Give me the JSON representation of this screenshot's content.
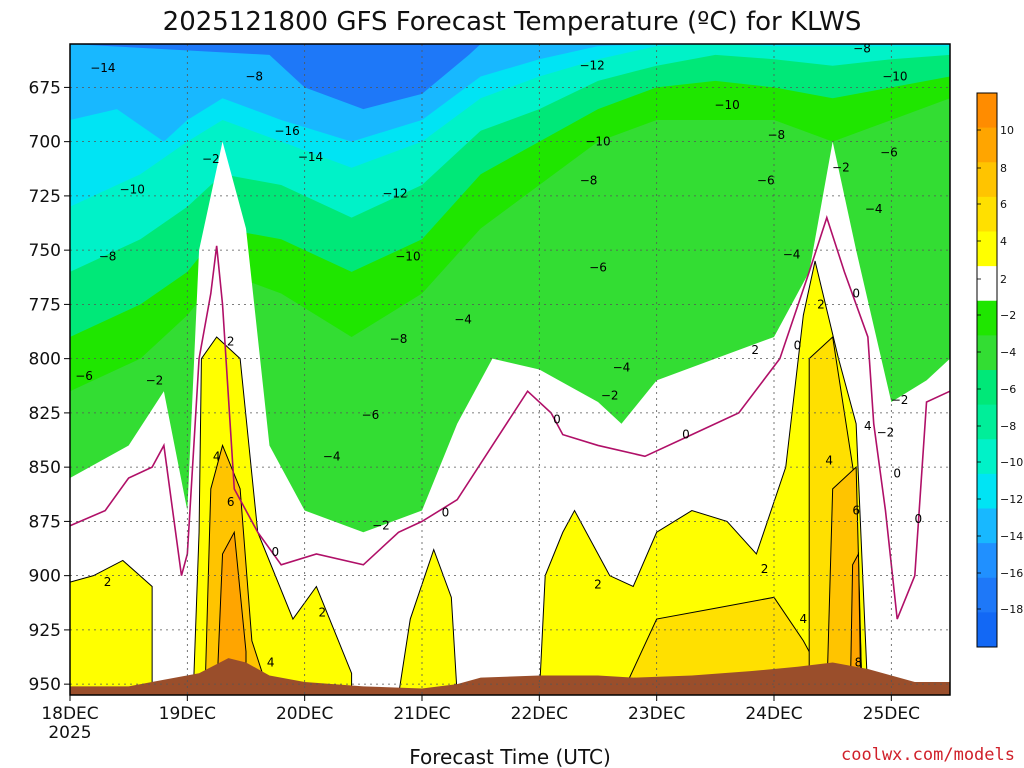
{
  "chart_data": {
    "type": "contour",
    "title": "2025121800 GFS Forecast Temperature (ºC) for KLWS",
    "xlabel": "Forecast Time (UTC)",
    "ylabel": "",
    "x_ticks": [
      "18DEC",
      "19DEC",
      "20DEC",
      "21DEC",
      "22DEC",
      "23DEC",
      "24DEC",
      "25DEC"
    ],
    "x_year": "2025",
    "xlim": [
      0,
      7.5
    ],
    "y_ticks": [
      675,
      700,
      725,
      750,
      775,
      800,
      825,
      850,
      875,
      900,
      925,
      950
    ],
    "ylim": [
      655,
      955
    ],
    "colorbar": {
      "levels": [
        10,
        8,
        6,
        4,
        2,
        -2,
        -4,
        -6,
        -8,
        -10,
        -12,
        -14,
        -16,
        -18
      ],
      "labels": [
        "10",
        "8",
        "6",
        "4",
        "2",
        "−2",
        "−4",
        "−6",
        "−8",
        "−10",
        "−12",
        "−14",
        "−16",
        "−18"
      ],
      "colors": [
        "#ff8c00",
        "#ffa500",
        "#ffc400",
        "#ffe000",
        "#ffff00",
        "#ffffff",
        "#1fe600",
        "#33dd33",
        "#00e878",
        "#00ee99",
        "#00f2c8",
        "#00e4f4",
        "#18b8ff",
        "#2090ff",
        "#1e78f8",
        "#1268f5"
      ]
    },
    "contour_labels": [
      {
        "text": "−14",
        "x": 0.28,
        "p": 666
      },
      {
        "text": "−8",
        "x": 1.57,
        "p": 670
      },
      {
        "text": "−16",
        "x": 1.85,
        "p": 695
      },
      {
        "text": "−14",
        "x": 2.05,
        "p": 707
      },
      {
        "text": "−2",
        "x": 1.2,
        "p": 708
      },
      {
        "text": "−10",
        "x": 0.53,
        "p": 722
      },
      {
        "text": "−12",
        "x": 2.77,
        "p": 724
      },
      {
        "text": "−8",
        "x": 0.32,
        "p": 753
      },
      {
        "text": "−10",
        "x": 2.88,
        "p": 753
      },
      {
        "text": "−8",
        "x": 2.8,
        "p": 791
      },
      {
        "text": "−4",
        "x": 3.35,
        "p": 782
      },
      {
        "text": "−6",
        "x": 0.12,
        "p": 808
      },
      {
        "text": "−2",
        "x": 0.72,
        "p": 810
      },
      {
        "text": "−6",
        "x": 2.56,
        "p": 826
      },
      {
        "text": "−4",
        "x": 2.23,
        "p": 845
      },
      {
        "text": "−2",
        "x": 2.65,
        "p": 877
      },
      {
        "text": "0",
        "x": 3.2,
        "p": 871
      },
      {
        "text": "2",
        "x": 1.37,
        "p": 792
      },
      {
        "text": "4",
        "x": 1.25,
        "p": 845
      },
      {
        "text": "6",
        "x": 1.37,
        "p": 866
      },
      {
        "text": "0",
        "x": 1.75,
        "p": 889
      },
      {
        "text": "2",
        "x": 2.15,
        "p": 917
      },
      {
        "text": "4",
        "x": 1.71,
        "p": 940
      },
      {
        "text": "2",
        "x": 0.32,
        "p": 903
      },
      {
        "text": "−12",
        "x": 4.45,
        "p": 665
      },
      {
        "text": "−10",
        "x": 4.5,
        "p": 700
      },
      {
        "text": "−8",
        "x": 4.42,
        "p": 718
      },
      {
        "text": "−6",
        "x": 4.5,
        "p": 758
      },
      {
        "text": "−4",
        "x": 4.7,
        "p": 804
      },
      {
        "text": "−2",
        "x": 4.6,
        "p": 817
      },
      {
        "text": "0",
        "x": 4.15,
        "p": 828
      },
      {
        "text": "0",
        "x": 5.25,
        "p": 835
      },
      {
        "text": "2",
        "x": 4.5,
        "p": 904
      },
      {
        "text": "−10",
        "x": 5.6,
        "p": 683
      },
      {
        "text": "−8",
        "x": 6.02,
        "p": 697
      },
      {
        "text": "−6",
        "x": 5.93,
        "p": 718
      },
      {
        "text": "−4",
        "x": 6.15,
        "p": 752
      },
      {
        "text": "−2",
        "x": 6.57,
        "p": 712
      },
      {
        "text": "2",
        "x": 5.84,
        "p": 796
      },
      {
        "text": "0",
        "x": 6.2,
        "p": 794
      },
      {
        "text": "2",
        "x": 5.92,
        "p": 897
      },
      {
        "text": "4",
        "x": 6.25,
        "p": 920
      },
      {
        "text": "2",
        "x": 6.4,
        "p": 775
      },
      {
        "text": "0",
        "x": 6.7,
        "p": 770
      },
      {
        "text": "4",
        "x": 6.47,
        "p": 847
      },
      {
        "text": "6",
        "x": 6.7,
        "p": 870
      },
      {
        "text": "8",
        "x": 6.72,
        "p": 940
      },
      {
        "text": "−8",
        "x": 6.75,
        "p": 657
      },
      {
        "text": "−10",
        "x": 7.03,
        "p": 670
      },
      {
        "text": "−6",
        "x": 6.98,
        "p": 705
      },
      {
        "text": "−4",
        "x": 6.85,
        "p": 731
      },
      {
        "text": "4",
        "x": 6.8,
        "p": 831
      },
      {
        "text": "−2",
        "x": 6.95,
        "p": 834
      },
      {
        "text": "−2",
        "x": 7.07,
        "p": 819
      },
      {
        "text": "0",
        "x": 7.05,
        "p": 853
      },
      {
        "text": "0",
        "x": 7.23,
        "p": 874
      }
    ]
  },
  "credit": "coolwx.com/models"
}
